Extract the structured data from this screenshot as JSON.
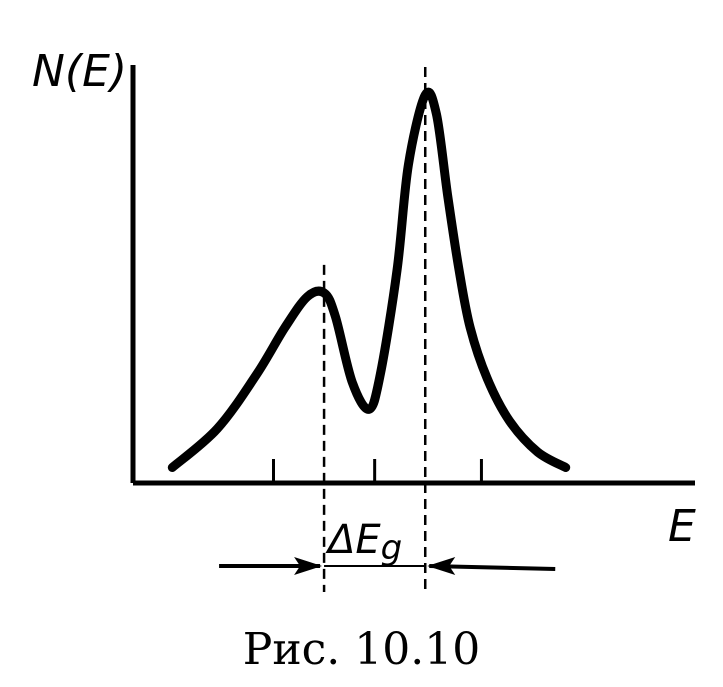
{
  "chart_data": {
    "type": "line",
    "title": "",
    "xlabel": "E",
    "ylabel": "N(E)",
    "annotation": "ΔE_g",
    "annotation_parts": {
      "base": "ΔE",
      "subscript": "g"
    },
    "xlim": [
      0,
      1
    ],
    "ylim": [
      0,
      1
    ],
    "grid": false,
    "series": [
      {
        "x": [
          0.07,
          0.15,
          0.22,
          0.27,
          0.31,
          0.34,
          0.36,
          0.39,
          0.42,
          0.44,
          0.47,
          0.49,
          0.52,
          0.54,
          0.56,
          0.58,
          0.6,
          0.63,
          0.67,
          0.72,
          0.77
        ],
        "y": [
          0.04,
          0.14,
          0.28,
          0.4,
          0.48,
          0.49,
          0.43,
          0.26,
          0.19,
          0.28,
          0.55,
          0.82,
          1.0,
          0.95,
          0.74,
          0.55,
          0.4,
          0.27,
          0.16,
          0.08,
          0.04
        ]
      }
    ],
    "peaks": [
      {
        "label": "",
        "x": 0.34,
        "y": 0.49
      },
      {
        "label": "",
        "x": 0.52,
        "y": 1.0
      }
    ],
    "ticks_x": [
      0.25,
      0.43,
      0.62
    ]
  },
  "caption": "Рис.  10.10"
}
